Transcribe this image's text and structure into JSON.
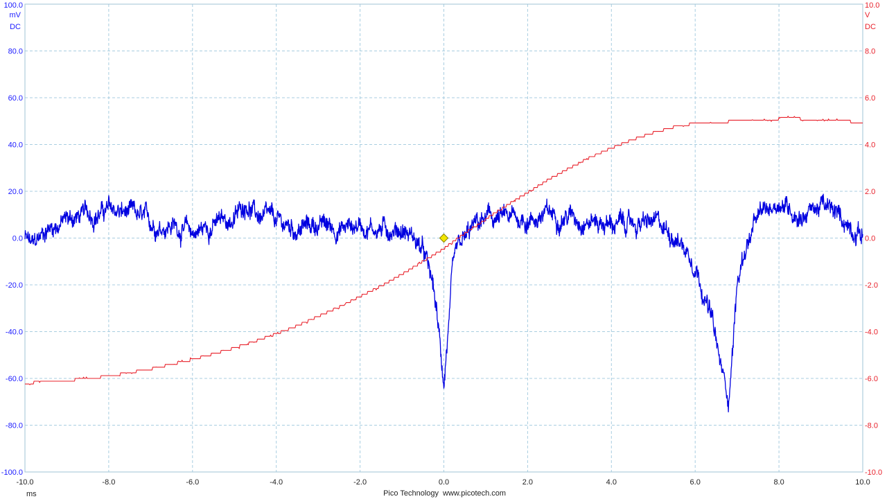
{
  "chart_data": {
    "type": "line",
    "x_unit": "ms",
    "x_range": [
      -10,
      10
    ],
    "x_ticks": [
      "-10.0",
      "-8.0",
      "-6.0",
      "-4.0",
      "-2.0",
      "0.0",
      "2.0",
      "4.0",
      "6.0",
      "8.0",
      "10.0"
    ],
    "left_axis": {
      "unit": "mV",
      "coupling": "DC",
      "range": [
        -100,
        100
      ],
      "ticks": [
        "100.0",
        "80.0",
        "60.0",
        "40.0",
        "20.0",
        "0.0",
        "-20.0",
        "-40.0",
        "-60.0",
        "-80.0",
        "-100.0"
      ],
      "color": "#1a1aff"
    },
    "right_axis": {
      "unit": "V",
      "coupling": "DC",
      "range": [
        -10,
        10
      ],
      "ticks": [
        "10.0",
        "8.0",
        "6.0",
        "4.0",
        "2.0",
        "0.0",
        "-2.0",
        "-4.0",
        "-6.0",
        "-8.0",
        "-10.0"
      ],
      "color": "#e8202a"
    },
    "grid": true,
    "series": [
      {
        "axis": "left",
        "color": "#0000e0",
        "x": [
          -10,
          -9.8,
          -9.5,
          -9.0,
          -8.5,
          -8.0,
          -7.5,
          -7.0,
          -6.5,
          -6.0,
          -5.5,
          -5.0,
          -4.7,
          -4.5,
          -4.0,
          -3.5,
          -3.0,
          -2.5,
          -2.0,
          -1.5,
          -1.0,
          -0.7,
          -0.5,
          -0.3,
          -0.2,
          -0.1,
          0.0,
          0.1,
          0.2,
          0.3,
          0.5,
          0.7,
          1.0,
          1.5,
          2.0,
          2.5,
          3.0,
          3.5,
          4.0,
          4.5,
          5.0,
          5.5,
          6.0,
          6.2,
          6.4,
          6.6,
          6.8,
          6.9,
          7.0,
          7.2,
          7.5,
          8.0,
          8.5,
          9.0,
          9.5,
          10.0
        ],
        "y": [
          0,
          -4,
          4,
          8,
          10,
          12,
          10,
          6,
          6,
          2,
          6,
          8,
          16,
          10,
          6,
          4,
          6,
          4,
          6,
          4,
          4,
          0,
          -6,
          -18,
          -28,
          -45,
          -62,
          -40,
          -18,
          -8,
          -2,
          4,
          8,
          8,
          8,
          10,
          10,
          8,
          6,
          6,
          6,
          2,
          -10,
          -22,
          -35,
          -55,
          -68,
          -45,
          -20,
          -4,
          8,
          16,
          10,
          14,
          8,
          2
        ]
      },
      {
        "axis": "right",
        "color": "#e8202a",
        "x": [
          -10,
          -9.5,
          -9.0,
          -8.5,
          -8.0,
          -7.5,
          -7.0,
          -6.5,
          -6.0,
          -5.5,
          -5.0,
          -4.5,
          -4.0,
          -3.5,
          -3.0,
          -2.5,
          -2.0,
          -1.5,
          -1.0,
          -0.5,
          0.0,
          0.5,
          1.0,
          1.5,
          2.0,
          2.5,
          3.0,
          3.5,
          4.0,
          4.5,
          5.0,
          5.5,
          6.0,
          6.5,
          7.0,
          7.5,
          8.0,
          8.5,
          9.0,
          9.5,
          10.0
        ],
        "y": [
          -6.2,
          -6.15,
          -6.1,
          -6.0,
          -5.9,
          -5.75,
          -5.6,
          -5.4,
          -5.2,
          -4.95,
          -4.7,
          -4.4,
          -4.1,
          -3.75,
          -3.35,
          -2.95,
          -2.5,
          -2.05,
          -1.55,
          -1.0,
          -0.45,
          0.2,
          0.8,
          1.4,
          1.95,
          2.5,
          3.0,
          3.45,
          3.85,
          4.2,
          4.5,
          4.75,
          4.9,
          4.95,
          5.0,
          5.05,
          5.1,
          5.1,
          5.05,
          5.0,
          4.95
        ]
      }
    ],
    "trigger_marker": {
      "x": 0.0,
      "y_left": 0.0,
      "color": "#f2e600"
    }
  },
  "footer": {
    "brand": "Pico Technology",
    "url": "www.picotech.com"
  }
}
